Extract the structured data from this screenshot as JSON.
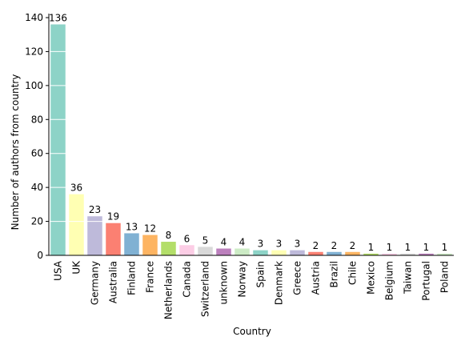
{
  "chart_data": {
    "type": "bar",
    "categories": [
      "USA",
      "UK",
      "Germany",
      "Australia",
      "Finland",
      "France",
      "Netherlands",
      "Canada",
      "Switzerland",
      "unknown",
      "Norway",
      "Spain",
      "Denmark",
      "Greece",
      "Austria",
      "Brazil",
      "Chile",
      "Mexico",
      "Belgium",
      "Taiwan",
      "Portugal",
      "Poland"
    ],
    "values": [
      136,
      36,
      23,
      19,
      13,
      12,
      8,
      6,
      5,
      4,
      4,
      3,
      3,
      3,
      2,
      2,
      2,
      1,
      1,
      1,
      1,
      1
    ],
    "value_labels": [
      "136",
      "36",
      "23",
      "19",
      "13",
      "12",
      "8",
      "6",
      "5",
      "4",
      "4",
      "3",
      "3",
      "3",
      "2",
      "2",
      "2",
      "1",
      "1",
      "1",
      "1",
      "1"
    ],
    "colors": [
      "#8dd3c7",
      "#ffffb3",
      "#bebada",
      "#fb8072",
      "#80b1d3",
      "#fdb462",
      "#b3de69",
      "#fccde5",
      "#d9d9d9",
      "#bc80bd",
      "#ccebc5",
      "#8dd3c7",
      "#ffffb3",
      "#bebada",
      "#fb8072",
      "#80b1d3",
      "#fdb462",
      "#b3de69",
      "#fccde5",
      "#d9d9d9",
      "#bc80bd",
      "#ccebc5"
    ],
    "xlabel": "Country",
    "ylabel": "Number of authors from country",
    "ylim": [
      0,
      140
    ],
    "yticks": [
      "0",
      "20",
      "40",
      "60",
      "80",
      "100",
      "120",
      "140"
    ],
    "grid": "horizontal white lines through bars",
    "legend": "none"
  }
}
